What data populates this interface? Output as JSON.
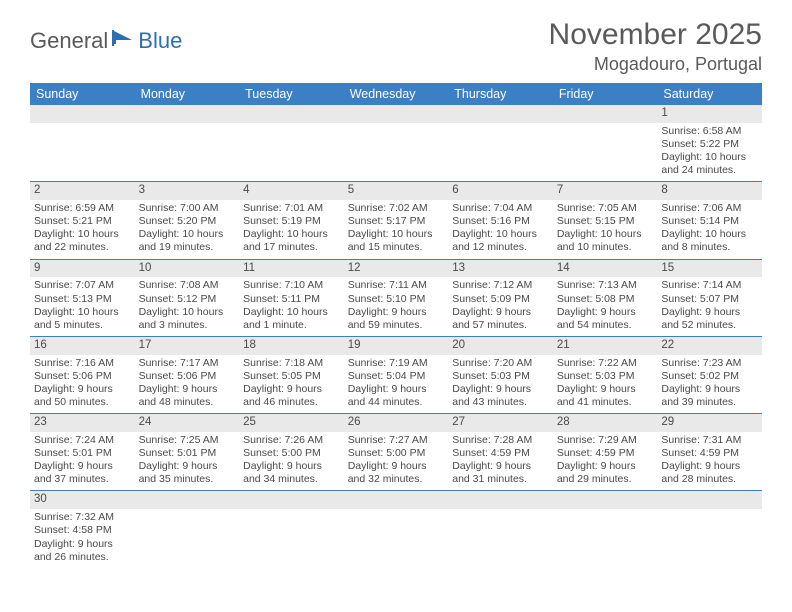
{
  "logo": {
    "text_a": "General",
    "text_b": "Blue"
  },
  "header": {
    "month": "November 2025",
    "location": "Mogadouro, Portugal"
  },
  "colors": {
    "header_bg": "#3b7fc4",
    "header_text": "#ffffff",
    "daynum_bg": "#e9e9e9",
    "row_divider": "#3b7fc4",
    "body_text": "#4a4a4a",
    "logo_gray": "#5a5a5a",
    "logo_blue": "#2d6fb5"
  },
  "daysOfWeek": [
    "Sunday",
    "Monday",
    "Tuesday",
    "Wednesday",
    "Thursday",
    "Friday",
    "Saturday"
  ],
  "weeks": [
    [
      null,
      null,
      null,
      null,
      null,
      null,
      {
        "n": "1",
        "sr": "6:58 AM",
        "ss": "5:22 PM",
        "dl": "10 hours and 24 minutes."
      }
    ],
    [
      {
        "n": "2",
        "sr": "6:59 AM",
        "ss": "5:21 PM",
        "dl": "10 hours and 22 minutes."
      },
      {
        "n": "3",
        "sr": "7:00 AM",
        "ss": "5:20 PM",
        "dl": "10 hours and 19 minutes."
      },
      {
        "n": "4",
        "sr": "7:01 AM",
        "ss": "5:19 PM",
        "dl": "10 hours and 17 minutes."
      },
      {
        "n": "5",
        "sr": "7:02 AM",
        "ss": "5:17 PM",
        "dl": "10 hours and 15 minutes."
      },
      {
        "n": "6",
        "sr": "7:04 AM",
        "ss": "5:16 PM",
        "dl": "10 hours and 12 minutes."
      },
      {
        "n": "7",
        "sr": "7:05 AM",
        "ss": "5:15 PM",
        "dl": "10 hours and 10 minutes."
      },
      {
        "n": "8",
        "sr": "7:06 AM",
        "ss": "5:14 PM",
        "dl": "10 hours and 8 minutes."
      }
    ],
    [
      {
        "n": "9",
        "sr": "7:07 AM",
        "ss": "5:13 PM",
        "dl": "10 hours and 5 minutes."
      },
      {
        "n": "10",
        "sr": "7:08 AM",
        "ss": "5:12 PM",
        "dl": "10 hours and 3 minutes."
      },
      {
        "n": "11",
        "sr": "7:10 AM",
        "ss": "5:11 PM",
        "dl": "10 hours and 1 minute."
      },
      {
        "n": "12",
        "sr": "7:11 AM",
        "ss": "5:10 PM",
        "dl": "9 hours and 59 minutes."
      },
      {
        "n": "13",
        "sr": "7:12 AM",
        "ss": "5:09 PM",
        "dl": "9 hours and 57 minutes."
      },
      {
        "n": "14",
        "sr": "7:13 AM",
        "ss": "5:08 PM",
        "dl": "9 hours and 54 minutes."
      },
      {
        "n": "15",
        "sr": "7:14 AM",
        "ss": "5:07 PM",
        "dl": "9 hours and 52 minutes."
      }
    ],
    [
      {
        "n": "16",
        "sr": "7:16 AM",
        "ss": "5:06 PM",
        "dl": "9 hours and 50 minutes."
      },
      {
        "n": "17",
        "sr": "7:17 AM",
        "ss": "5:06 PM",
        "dl": "9 hours and 48 minutes."
      },
      {
        "n": "18",
        "sr": "7:18 AM",
        "ss": "5:05 PM",
        "dl": "9 hours and 46 minutes."
      },
      {
        "n": "19",
        "sr": "7:19 AM",
        "ss": "5:04 PM",
        "dl": "9 hours and 44 minutes."
      },
      {
        "n": "20",
        "sr": "7:20 AM",
        "ss": "5:03 PM",
        "dl": "9 hours and 43 minutes."
      },
      {
        "n": "21",
        "sr": "7:22 AM",
        "ss": "5:03 PM",
        "dl": "9 hours and 41 minutes."
      },
      {
        "n": "22",
        "sr": "7:23 AM",
        "ss": "5:02 PM",
        "dl": "9 hours and 39 minutes."
      }
    ],
    [
      {
        "n": "23",
        "sr": "7:24 AM",
        "ss": "5:01 PM",
        "dl": "9 hours and 37 minutes."
      },
      {
        "n": "24",
        "sr": "7:25 AM",
        "ss": "5:01 PM",
        "dl": "9 hours and 35 minutes."
      },
      {
        "n": "25",
        "sr": "7:26 AM",
        "ss": "5:00 PM",
        "dl": "9 hours and 34 minutes."
      },
      {
        "n": "26",
        "sr": "7:27 AM",
        "ss": "5:00 PM",
        "dl": "9 hours and 32 minutes."
      },
      {
        "n": "27",
        "sr": "7:28 AM",
        "ss": "4:59 PM",
        "dl": "9 hours and 31 minutes."
      },
      {
        "n": "28",
        "sr": "7:29 AM",
        "ss": "4:59 PM",
        "dl": "9 hours and 29 minutes."
      },
      {
        "n": "29",
        "sr": "7:31 AM",
        "ss": "4:59 PM",
        "dl": "9 hours and 28 minutes."
      }
    ],
    [
      {
        "n": "30",
        "sr": "7:32 AM",
        "ss": "4:58 PM",
        "dl": "9 hours and 26 minutes."
      },
      null,
      null,
      null,
      null,
      null,
      null
    ]
  ],
  "labels": {
    "sunrise": "Sunrise: ",
    "sunset": "Sunset: ",
    "daylight": "Daylight: "
  }
}
